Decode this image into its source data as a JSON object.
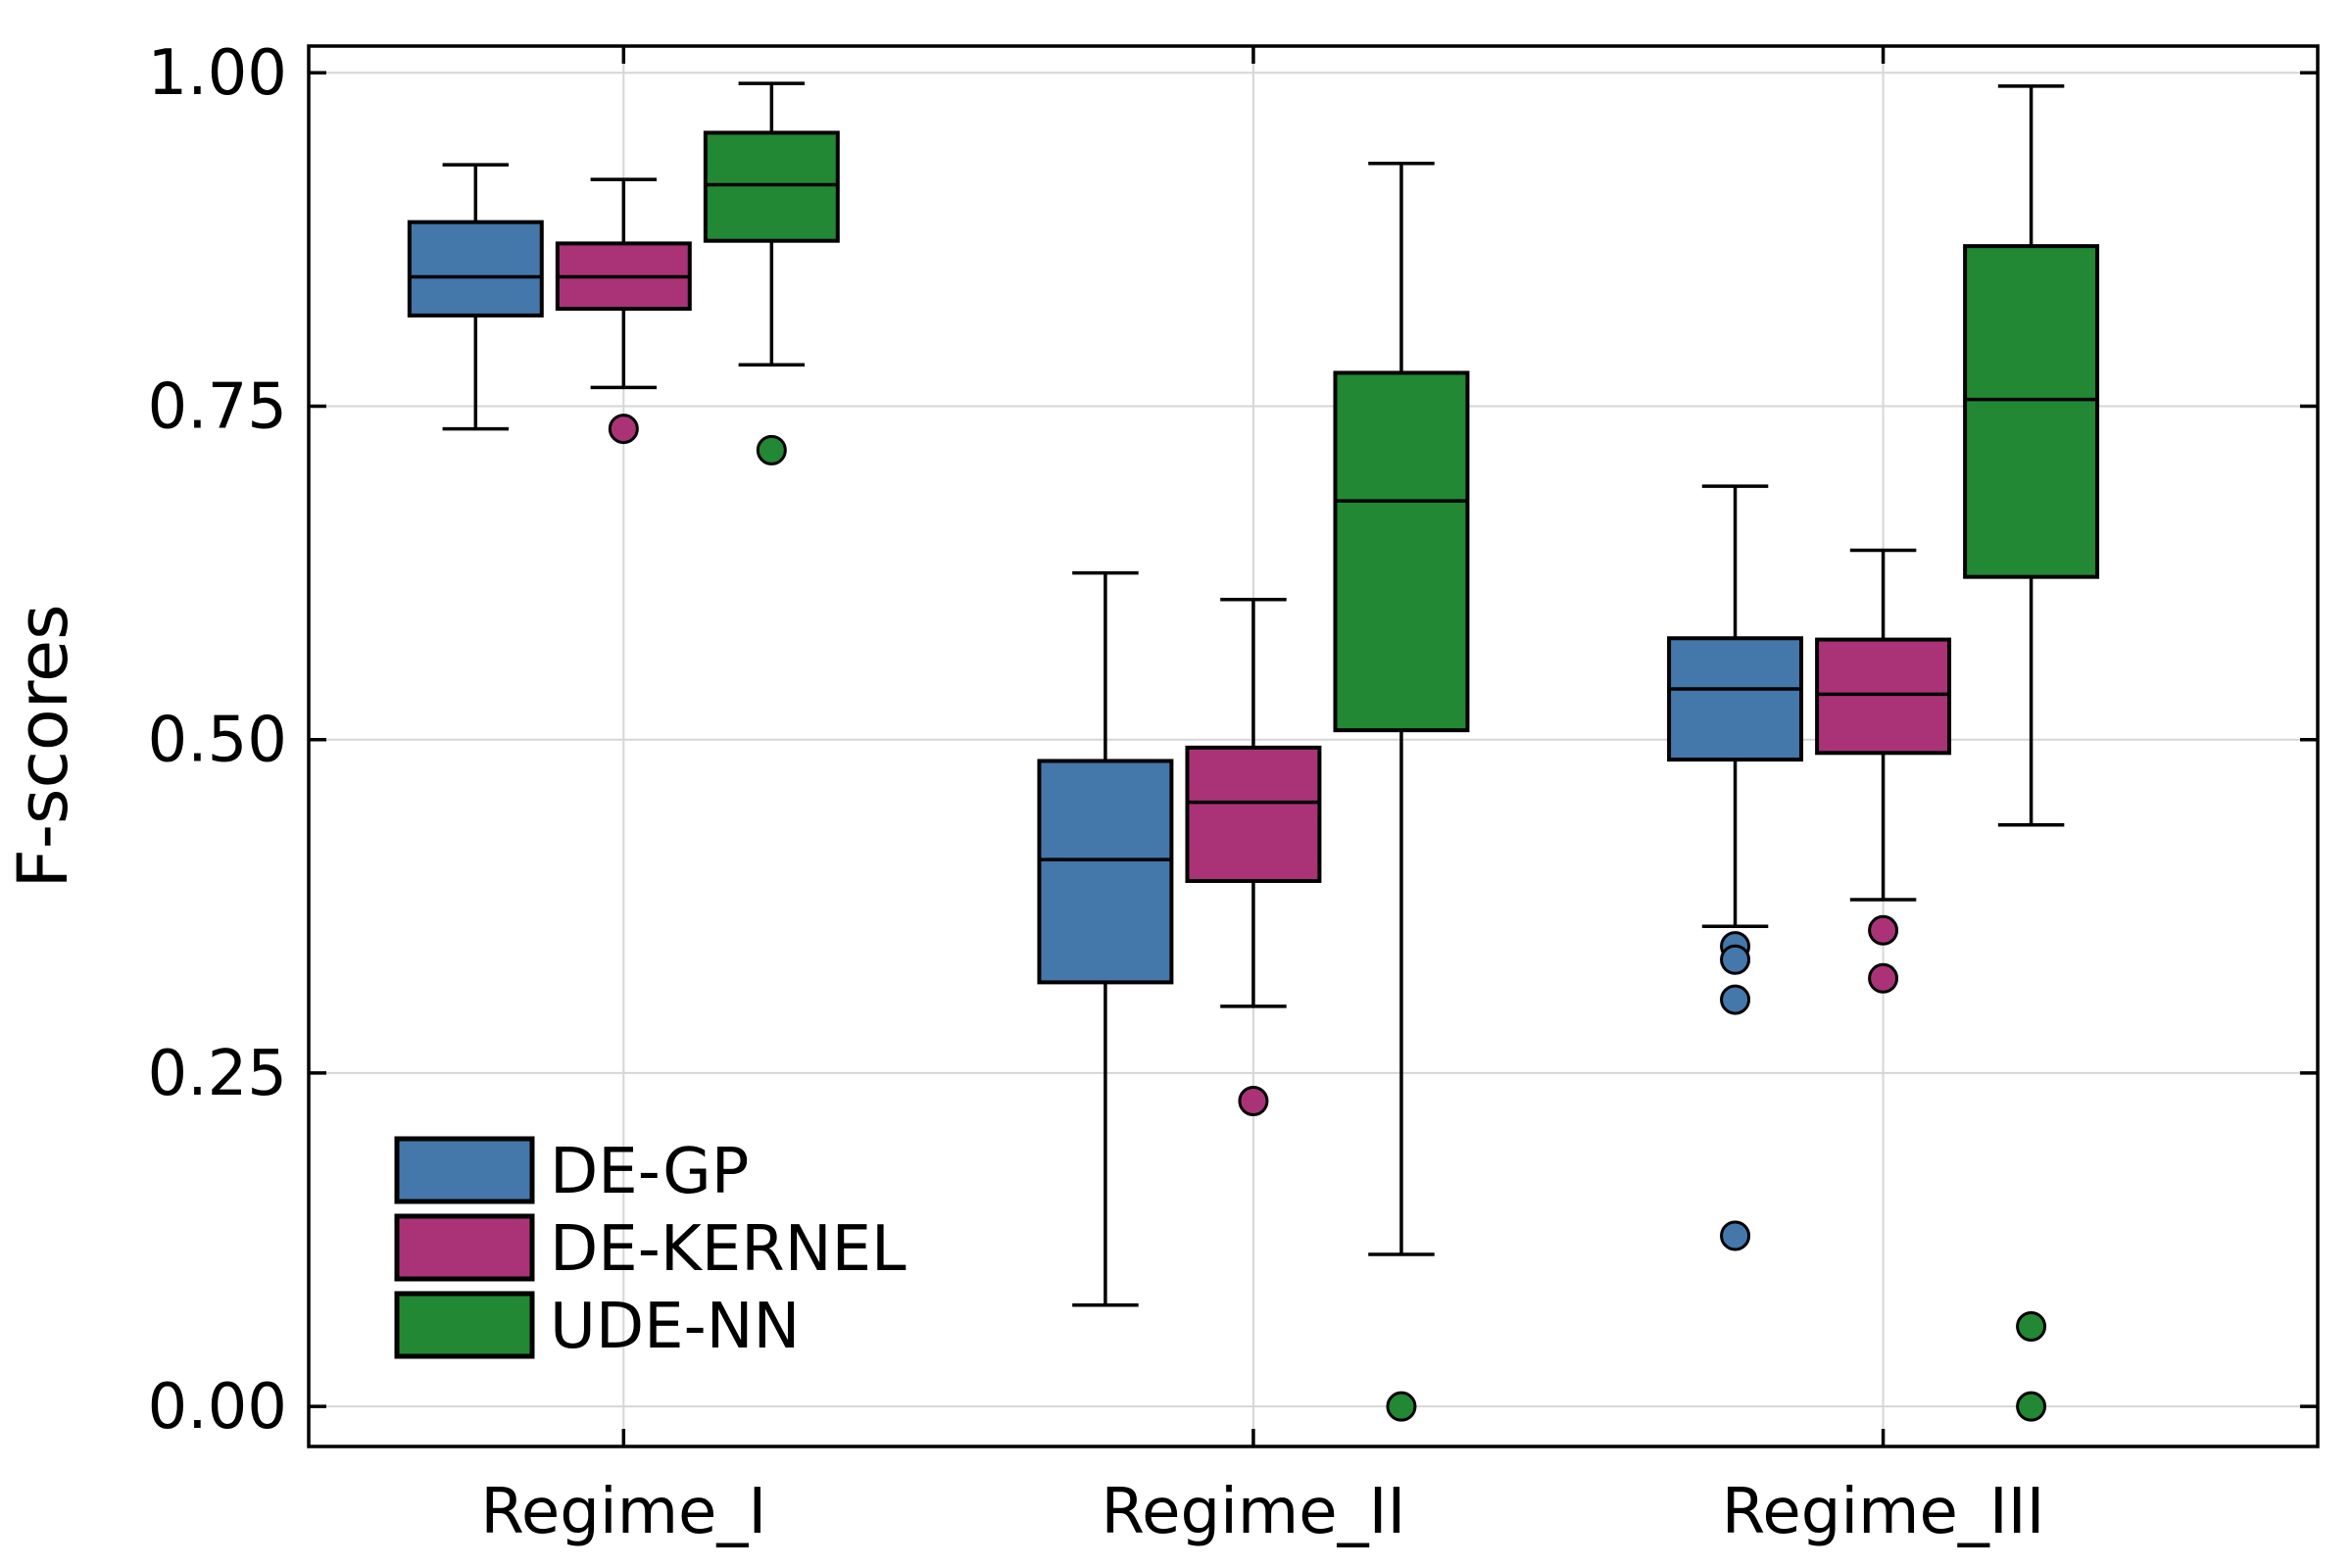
{
  "chart_data": {
    "type": "box",
    "title": "",
    "xlabel": "",
    "ylabel": "F-scores",
    "ylim": [
      -0.03,
      1.02
    ],
    "yticks": [
      0.0,
      0.25,
      0.5,
      0.75,
      1.0
    ],
    "ytick_labels": [
      "0.00",
      "0.25",
      "0.50",
      "0.75",
      "1.00"
    ],
    "categories": [
      "Regime_I",
      "Regime_II",
      "Regime_III"
    ],
    "grid": true,
    "legend_position": "bottom-left",
    "series": [
      {
        "name": "DE-GP",
        "color": "#4477AA",
        "boxes": [
          {
            "whisker_low": 0.733,
            "q1": 0.818,
            "median": 0.847,
            "q3": 0.888,
            "whisker_high": 0.931,
            "outliers": []
          },
          {
            "whisker_low": 0.076,
            "q1": 0.318,
            "median": 0.41,
            "q3": 0.484,
            "whisker_high": 0.625,
            "outliers": []
          },
          {
            "whisker_low": 0.36,
            "q1": 0.485,
            "median": 0.538,
            "q3": 0.576,
            "whisker_high": 0.69,
            "outliers": [
              0.345,
              0.335,
              0.305,
              0.128
            ]
          }
        ]
      },
      {
        "name": "DE-KERNEL",
        "color": "#AA3377",
        "boxes": [
          {
            "whisker_low": 0.764,
            "q1": 0.823,
            "median": 0.847,
            "q3": 0.872,
            "whisker_high": 0.92,
            "outliers": [
              0.733
            ]
          },
          {
            "whisker_low": 0.3,
            "q1": 0.394,
            "median": 0.453,
            "q3": 0.494,
            "whisker_high": 0.605,
            "outliers": [
              0.229
            ]
          },
          {
            "whisker_low": 0.38,
            "q1": 0.49,
            "median": 0.534,
            "q3": 0.575,
            "whisker_high": 0.642,
            "outliers": [
              0.357,
              0.321
            ]
          }
        ]
      },
      {
        "name": "UDE-NN",
        "color": "#228833",
        "boxes": [
          {
            "whisker_low": 0.781,
            "q1": 0.874,
            "median": 0.916,
            "q3": 0.955,
            "whisker_high": 0.992,
            "outliers": [
              0.717
            ]
          },
          {
            "whisker_low": 0.114,
            "q1": 0.507,
            "median": 0.679,
            "q3": 0.775,
            "whisker_high": 0.932,
            "outliers": [
              0.0
            ]
          },
          {
            "whisker_low": 0.436,
            "q1": 0.622,
            "median": 0.755,
            "q3": 0.87,
            "whisker_high": 0.99,
            "outliers": [
              0.06,
              0.0
            ]
          }
        ]
      }
    ]
  }
}
